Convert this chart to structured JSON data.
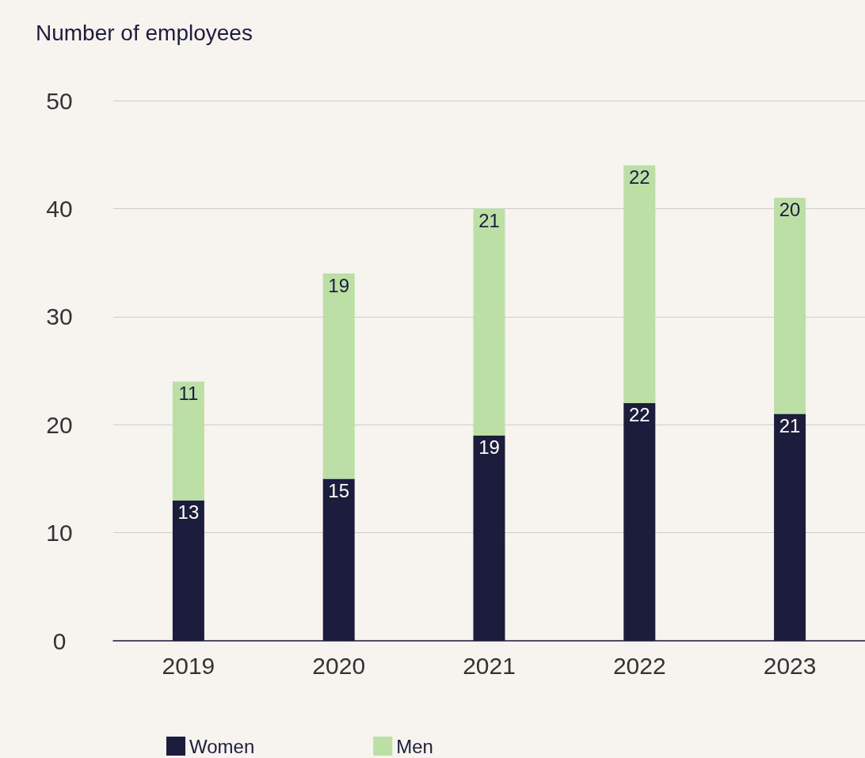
{
  "chart_data": {
    "type": "bar",
    "ylabel": "Number of employees",
    "categories": [
      "2019",
      "2020",
      "2021",
      "2022",
      "2023"
    ],
    "series": [
      {
        "name": "Women",
        "color": "#1c1c3c",
        "values": [
          13,
          15,
          19,
          22,
          21
        ]
      },
      {
        "name": "Men",
        "color": "#bbdfa5",
        "values": [
          11,
          19,
          21,
          22,
          20
        ]
      }
    ],
    "stacked": true,
    "ylim": [
      0,
      50
    ],
    "yticks": [
      0,
      10,
      20,
      30,
      40,
      50
    ],
    "grid": "y",
    "legend": "bottom left",
    "data_labels": true
  }
}
